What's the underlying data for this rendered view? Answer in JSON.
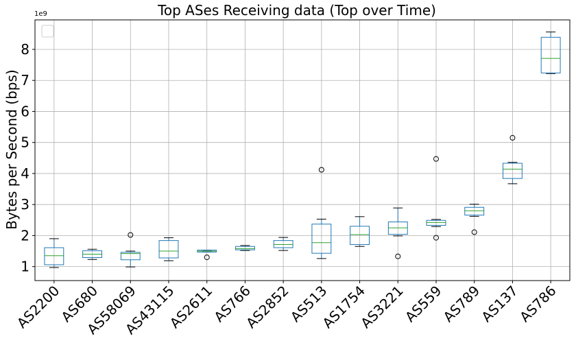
{
  "chart_data": {
    "type": "box",
    "title": "Top ASes Receiving data (Top over Time)",
    "xlabel": "",
    "ylabel": "Bytes per Second (bps)",
    "y_offset_label": "1e9",
    "y_unit_multiplier": 1000000000,
    "ylim": [
      0.55,
      8.95
    ],
    "yticks": [
      1,
      2,
      3,
      4,
      5,
      6,
      7,
      8
    ],
    "grid": true,
    "legend": "top-left (empty)",
    "colors": {
      "box": "#1f77b4",
      "median": "#2ca02c",
      "whisker": "#000000",
      "grid": "#b0b0b0"
    },
    "categories": [
      "AS2200",
      "AS680",
      "AS58069",
      "AS43115",
      "AS2611",
      "AS766",
      "AS2852",
      "AS513",
      "AS1754",
      "AS3221",
      "AS559",
      "AS789",
      "AS137",
      "AS786"
    ],
    "boxes": [
      {
        "whislo": 0.97,
        "q1": 1.06,
        "med": 1.35,
        "q3": 1.61,
        "whishi": 1.9,
        "fliers": []
      },
      {
        "whislo": 1.23,
        "q1": 1.29,
        "med": 1.4,
        "q3": 1.51,
        "whishi": 1.56,
        "fliers": []
      },
      {
        "whislo": 0.99,
        "q1": 1.22,
        "med": 1.42,
        "q3": 1.46,
        "whishi": 1.5,
        "fliers": [
          2.02
        ]
      },
      {
        "whislo": 1.19,
        "q1": 1.28,
        "med": 1.5,
        "q3": 1.84,
        "whishi": 1.93,
        "fliers": []
      },
      {
        "whislo": 1.47,
        "q1": 1.47,
        "med": 1.5,
        "q3": 1.53,
        "whishi": 1.53,
        "fliers": [
          1.3
        ]
      },
      {
        "whislo": 1.52,
        "q1": 1.54,
        "med": 1.58,
        "q3": 1.65,
        "whishi": 1.68,
        "fliers": []
      },
      {
        "whislo": 1.52,
        "q1": 1.61,
        "med": 1.71,
        "q3": 1.84,
        "whishi": 1.94,
        "fliers": []
      },
      {
        "whislo": 1.26,
        "q1": 1.43,
        "med": 1.77,
        "q3": 2.37,
        "whishi": 2.53,
        "fliers": [
          4.12
        ]
      },
      {
        "whislo": 1.65,
        "q1": 1.71,
        "med": 2.03,
        "q3": 2.3,
        "whishi": 2.61,
        "fliers": []
      },
      {
        "whislo": 1.99,
        "q1": 2.04,
        "med": 2.25,
        "q3": 2.44,
        "whishi": 2.89,
        "fliers": [
          1.33
        ]
      },
      {
        "whislo": 2.29,
        "q1": 2.33,
        "med": 2.42,
        "q3": 2.49,
        "whishi": 2.52,
        "fliers": [
          1.93,
          4.47
        ]
      },
      {
        "whislo": 2.62,
        "q1": 2.66,
        "med": 2.8,
        "q3": 2.91,
        "whishi": 3.01,
        "fliers": [
          2.11
        ]
      },
      {
        "whislo": 3.67,
        "q1": 3.84,
        "med": 4.14,
        "q3": 4.33,
        "whishi": 4.36,
        "fliers": [
          5.15
        ]
      },
      {
        "whislo": 7.22,
        "q1": 7.24,
        "med": 7.71,
        "q3": 8.39,
        "whishi": 8.56,
        "fliers": []
      }
    ]
  }
}
